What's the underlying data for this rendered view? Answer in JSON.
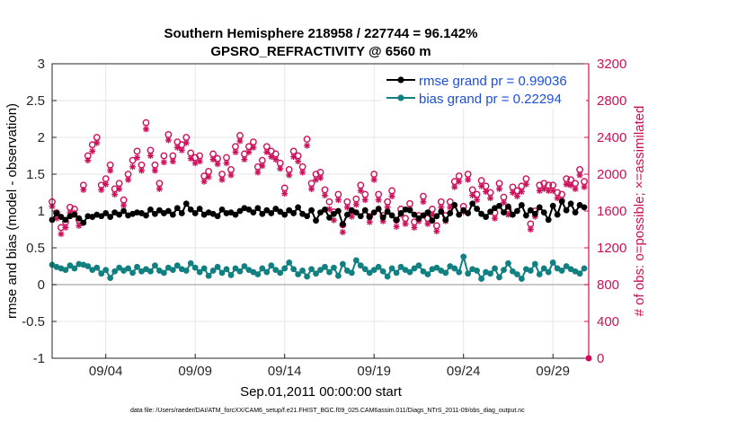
{
  "chart_data": {
    "type": "line",
    "title": "Southern Hemisphere 218958 / 227744 = 96.142%",
    "subtitle": "GPSRO_REFRACTIVITY @ 6560 m",
    "xlabel": "Sep.01,2011 00:00:00 start",
    "ylabel_left": "rmse and bias (model - observation)",
    "ylabel_right": "# of obs: o=possible; ×=assimilated",
    "footnote": "data file: /Users/raeder/DAI/ATM_forcXX/CAM6_setup/f.e21.FHIST_BGC.f09_025.CAM6assim.011/Diags_NTrS_2011-09/obs_diag_output.nc",
    "xlim": [
      1,
      31
    ],
    "ylim_left": [
      -1,
      3
    ],
    "ylim_right": [
      0,
      3200
    ],
    "left_ticks": [
      "-1",
      "-0.5",
      "0",
      "0.5",
      "1",
      "1.5",
      "2",
      "2.5",
      "3"
    ],
    "right_ticks": [
      "0",
      "400",
      "800",
      "1200",
      "1600",
      "2000",
      "2400",
      "2800",
      "3200"
    ],
    "x_tick_labels": [
      {
        "x": 4,
        "label": "09/04"
      },
      {
        "x": 9,
        "label": "09/09"
      },
      {
        "x": 14,
        "label": "09/14"
      },
      {
        "x": 19,
        "label": "09/19"
      },
      {
        "x": 24,
        "label": "09/24"
      },
      {
        "x": 29,
        "label": "09/29"
      }
    ],
    "legend_position": "top-right",
    "colors": {
      "rmse": "#000000",
      "bias": "#118080",
      "obs": "#cc0f5a",
      "legend_text": "#1d4fd8"
    },
    "series": [
      {
        "name": "rmse grand pr = 0.99036",
        "axis": "left",
        "color": "#000000",
        "x": [
          1.0,
          1.25,
          1.5,
          1.75,
          2.0,
          2.25,
          2.5,
          2.75,
          3.0,
          3.25,
          3.5,
          3.75,
          4.0,
          4.25,
          4.5,
          4.75,
          5.0,
          5.25,
          5.5,
          5.75,
          6.0,
          6.25,
          6.5,
          6.75,
          7.0,
          7.25,
          7.5,
          7.75,
          8.0,
          8.25,
          8.5,
          8.75,
          9.0,
          9.25,
          9.5,
          9.75,
          10.0,
          10.25,
          10.5,
          10.75,
          11.0,
          11.25,
          11.5,
          11.75,
          12.0,
          12.25,
          12.5,
          12.75,
          13.0,
          13.25,
          13.5,
          13.75,
          14.0,
          14.25,
          14.5,
          14.75,
          15.0,
          15.25,
          15.5,
          15.75,
          16.0,
          16.25,
          16.5,
          16.75,
          17.0,
          17.25,
          17.5,
          17.75,
          18.0,
          18.25,
          18.5,
          18.75,
          19.0,
          19.25,
          19.5,
          19.75,
          20.0,
          20.25,
          20.5,
          20.75,
          21.0,
          21.25,
          21.5,
          21.75,
          22.0,
          22.25,
          22.5,
          22.75,
          23.0,
          23.25,
          23.5,
          23.75,
          24.0,
          24.25,
          24.5,
          24.75,
          25.0,
          25.25,
          25.5,
          25.75,
          26.0,
          26.25,
          26.5,
          26.75,
          27.0,
          27.25,
          27.5,
          27.75,
          28.0,
          28.25,
          28.5,
          28.75,
          29.0,
          29.25,
          29.5,
          29.75,
          30.0,
          30.25,
          30.5,
          30.75
        ],
        "y": [
          0.88,
          0.97,
          0.92,
          0.88,
          0.93,
          0.95,
          0.9,
          0.84,
          0.93,
          0.92,
          0.95,
          0.93,
          0.97,
          0.92,
          0.98,
          0.95,
          1.0,
          0.94,
          0.96,
          0.98,
          0.97,
          0.94,
          1.02,
          0.96,
          1.01,
          0.97,
          1.0,
          0.95,
          1.04,
          0.97,
          1.1,
          1.02,
          0.97,
          1.03,
          0.95,
          0.98,
          0.96,
          0.93,
          1.02,
          0.97,
          0.98,
          0.95,
          1.0,
          1.04,
          1.02,
          0.98,
          1.04,
          0.96,
          1.01,
          0.97,
          1.03,
          0.99,
          0.95,
          1.01,
          0.97,
          1.05,
          0.96,
          0.93,
          1.01,
          0.87,
          0.98,
          1.02,
          0.91,
          0.96,
          1.0,
          0.82,
          0.95,
          1.01,
          0.98,
          0.93,
          1.01,
          0.92,
          0.98,
          1.03,
          0.91,
          0.99,
          0.94,
          0.88,
          0.97,
          1.02,
          1.01,
          0.95,
          0.9,
          0.94,
          0.98,
          0.87,
          0.93,
          0.99,
          0.88,
          0.97,
          1.08,
          0.95,
          1.01,
          0.97,
          1.1,
          1.03,
          0.96,
          0.92,
          0.99,
          1.04,
          1.07,
          0.98,
          1.06,
          0.95,
          1.0,
          1.08,
          0.94,
          1.01,
          0.96,
          1.05,
          0.98,
          0.88,
          1.07,
          0.95,
          1.13,
          1.01,
          1.1,
          0.98,
          1.08,
          1.05
        ]
      },
      {
        "name": "bias grand pr = 0.22294",
        "axis": "left",
        "color": "#118080",
        "x": [
          1.0,
          1.25,
          1.5,
          1.75,
          2.0,
          2.25,
          2.5,
          2.75,
          3.0,
          3.25,
          3.5,
          3.75,
          4.0,
          4.25,
          4.5,
          4.75,
          5.0,
          5.25,
          5.5,
          5.75,
          6.0,
          6.25,
          6.5,
          6.75,
          7.0,
          7.25,
          7.5,
          7.75,
          8.0,
          8.25,
          8.5,
          8.75,
          9.0,
          9.25,
          9.5,
          9.75,
          10.0,
          10.25,
          10.5,
          10.75,
          11.0,
          11.25,
          11.5,
          11.75,
          12.0,
          12.25,
          12.5,
          12.75,
          13.0,
          13.25,
          13.5,
          13.75,
          14.0,
          14.25,
          14.5,
          14.75,
          15.0,
          15.25,
          15.5,
          15.75,
          16.0,
          16.25,
          16.5,
          16.75,
          17.0,
          17.25,
          17.5,
          17.75,
          18.0,
          18.25,
          18.5,
          18.75,
          19.0,
          19.25,
          19.5,
          19.75,
          20.0,
          20.25,
          20.5,
          20.75,
          21.0,
          21.25,
          21.5,
          21.75,
          22.0,
          22.25,
          22.5,
          22.75,
          23.0,
          23.25,
          23.5,
          23.75,
          24.0,
          24.25,
          24.5,
          24.75,
          25.0,
          25.25,
          25.5,
          25.75,
          26.0,
          26.25,
          26.5,
          26.75,
          27.0,
          27.25,
          27.5,
          27.75,
          28.0,
          28.25,
          28.5,
          28.75,
          29.0,
          29.25,
          29.5,
          29.75,
          30.0,
          30.25,
          30.5,
          30.75
        ],
        "y": [
          0.27,
          0.24,
          0.22,
          0.2,
          0.26,
          0.22,
          0.28,
          0.27,
          0.25,
          0.2,
          0.23,
          0.15,
          0.2,
          0.09,
          0.18,
          0.23,
          0.19,
          0.22,
          0.16,
          0.24,
          0.18,
          0.21,
          0.18,
          0.26,
          0.19,
          0.16,
          0.23,
          0.2,
          0.26,
          0.21,
          0.19,
          0.29,
          0.23,
          0.17,
          0.22,
          0.12,
          0.19,
          0.24,
          0.16,
          0.21,
          0.13,
          0.22,
          0.18,
          0.25,
          0.2,
          0.17,
          0.14,
          0.22,
          0.17,
          0.26,
          0.2,
          0.16,
          0.22,
          0.3,
          0.21,
          0.14,
          0.19,
          0.11,
          0.21,
          0.15,
          0.2,
          0.24,
          0.17,
          0.23,
          0.12,
          0.28,
          0.19,
          0.16,
          0.33,
          0.26,
          0.21,
          0.16,
          0.2,
          0.24,
          0.18,
          0.11,
          0.22,
          0.16,
          0.24,
          0.2,
          0.17,
          0.22,
          0.26,
          0.18,
          0.14,
          0.21,
          0.23,
          0.19,
          0.16,
          0.25,
          0.22,
          0.17,
          0.38,
          0.15,
          0.21,
          0.19,
          0.08,
          0.17,
          0.15,
          0.22,
          0.1,
          0.2,
          0.29,
          0.18,
          0.14,
          0.08,
          0.21,
          0.19,
          0.28,
          0.14,
          0.22,
          0.17,
          0.3,
          0.22,
          0.19,
          0.25,
          0.21,
          0.18,
          0.15,
          0.22
        ]
      },
      {
        "name": "possible",
        "axis": "right",
        "color": "#cc0f5a",
        "x": [
          1.0,
          1.25,
          1.5,
          1.75,
          2.0,
          2.25,
          2.5,
          2.75,
          3.0,
          3.25,
          3.5,
          3.75,
          4.0,
          4.25,
          4.5,
          4.75,
          5.0,
          5.25,
          5.5,
          5.75,
          6.0,
          6.25,
          6.5,
          6.75,
          7.0,
          7.25,
          7.5,
          7.75,
          8.0,
          8.25,
          8.5,
          8.75,
          9.0,
          9.25,
          9.5,
          9.75,
          10.0,
          10.25,
          10.5,
          10.75,
          11.0,
          11.25,
          11.5,
          11.75,
          12.0,
          12.25,
          12.5,
          12.75,
          13.0,
          13.25,
          13.5,
          13.75,
          14.0,
          14.25,
          14.5,
          14.75,
          15.0,
          15.25,
          15.5,
          15.75,
          16.0,
          16.25,
          16.5,
          16.75,
          17.0,
          17.25,
          17.5,
          17.75,
          18.0,
          18.25,
          18.5,
          18.75,
          19.0,
          19.25,
          19.5,
          19.75,
          20.0,
          20.25,
          20.5,
          20.75,
          21.0,
          21.25,
          21.5,
          21.75,
          22.0,
          22.25,
          22.5,
          22.75,
          23.0,
          23.25,
          23.5,
          23.75,
          24.0,
          24.25,
          24.5,
          24.75,
          25.0,
          25.25,
          25.5,
          25.75,
          26.0,
          26.25,
          26.5,
          26.75,
          27.0,
          27.25,
          27.5,
          27.75,
          28.0,
          28.25,
          28.5,
          28.75,
          29.0,
          29.25,
          29.5,
          29.75,
          30.0,
          30.25,
          30.5,
          30.75
        ],
        "y": [
          1700,
          1580,
          1420,
          1480,
          1640,
          1620,
          1500,
          1880,
          2200,
          2320,
          2400,
          1880,
          1950,
          2100,
          1840,
          1900,
          1720,
          2000,
          2150,
          2250,
          2100,
          2560,
          2260,
          2100,
          1900,
          2200,
          2430,
          2200,
          2350,
          2320,
          2400,
          2230,
          2180,
          2200,
          1980,
          2030,
          2220,
          2170,
          2000,
          2180,
          2050,
          2300,
          2420,
          2220,
          2300,
          2350,
          2080,
          2150,
          2300,
          2250,
          2220,
          2120,
          1850,
          2050,
          2250,
          2200,
          2080,
          2380,
          1900,
          2000,
          2020,
          1830,
          1700,
          1590,
          1780,
          1450,
          1700,
          1600,
          1730,
          1880,
          1780,
          1540,
          2000,
          1780,
          1550,
          1700,
          1820,
          1500,
          1620,
          1520,
          1680,
          1480,
          1550,
          1760,
          1520,
          1620,
          1440,
          1700,
          1550,
          1700,
          1920,
          1980,
          1650,
          2000,
          1830,
          1780,
          1930,
          1870,
          1800,
          1580,
          1900,
          1750,
          1620,
          1860,
          1820,
          1870,
          1950,
          1460,
          1600,
          1880,
          1900,
          1880,
          1880,
          1800,
          1780,
          1950,
          1940,
          1900,
          2050,
          1920
        ]
      },
      {
        "name": "assimilated",
        "axis": "right",
        "color": "#cc0f5a",
        "x": [
          1.0,
          1.25,
          1.5,
          1.75,
          2.0,
          2.25,
          2.5,
          2.75,
          3.0,
          3.25,
          3.5,
          3.75,
          4.0,
          4.25,
          4.5,
          4.75,
          5.0,
          5.25,
          5.5,
          5.75,
          6.0,
          6.25,
          6.5,
          6.75,
          7.0,
          7.25,
          7.5,
          7.75,
          8.0,
          8.25,
          8.5,
          8.75,
          9.0,
          9.25,
          9.5,
          9.75,
          10.0,
          10.25,
          10.5,
          10.75,
          11.0,
          11.25,
          11.5,
          11.75,
          12.0,
          12.25,
          12.5,
          12.75,
          13.0,
          13.25,
          13.5,
          13.75,
          14.0,
          14.25,
          14.5,
          14.75,
          15.0,
          15.25,
          15.5,
          15.75,
          16.0,
          16.25,
          16.5,
          16.75,
          17.0,
          17.25,
          17.5,
          17.75,
          18.0,
          18.25,
          18.5,
          18.75,
          19.0,
          19.25,
          19.5,
          19.75,
          20.0,
          20.25,
          20.5,
          20.75,
          21.0,
          21.25,
          21.5,
          21.75,
          22.0,
          22.25,
          22.5,
          22.75,
          23.0,
          23.25,
          23.5,
          23.75,
          24.0,
          24.25,
          24.5,
          24.75,
          25.0,
          25.25,
          25.5,
          25.75,
          26.0,
          26.25,
          26.5,
          26.75,
          27.0,
          27.25,
          27.5,
          27.75,
          28.0,
          28.25,
          28.5,
          28.75,
          29.0,
          29.25,
          29.5,
          29.75,
          30.0,
          30.25,
          30.5,
          30.75
        ],
        "y": [
          1650,
          1520,
          1350,
          1420,
          1580,
          1580,
          1440,
          1830,
          2150,
          2250,
          2340,
          1830,
          1890,
          2040,
          1780,
          1840,
          1660,
          1940,
          2080,
          2180,
          2040,
          2490,
          2200,
          2040,
          1840,
          2130,
          2370,
          2140,
          2290,
          2260,
          2340,
          2170,
          2120,
          2140,
          1920,
          1970,
          2160,
          2110,
          1940,
          2120,
          1990,
          2240,
          2360,
          2160,
          2240,
          2290,
          2020,
          2090,
          2240,
          2190,
          2160,
          2060,
          1790,
          1990,
          2190,
          2140,
          2020,
          2310,
          1840,
          1940,
          1960,
          1770,
          1620,
          1500,
          1720,
          1370,
          1640,
          1540,
          1670,
          1820,
          1720,
          1480,
          1940,
          1720,
          1490,
          1640,
          1760,
          1430,
          1560,
          1460,
          1620,
          1420,
          1490,
          1700,
          1460,
          1560,
          1380,
          1640,
          1490,
          1640,
          1860,
          1920,
          1590,
          1940,
          1770,
          1720,
          1870,
          1810,
          1740,
          1520,
          1840,
          1690,
          1560,
          1800,
          1760,
          1810,
          1890,
          1400,
          1540,
          1820,
          1840,
          1820,
          1820,
          1740,
          1720,
          1890,
          1880,
          1840,
          1990,
          1860
        ]
      }
    ]
  }
}
